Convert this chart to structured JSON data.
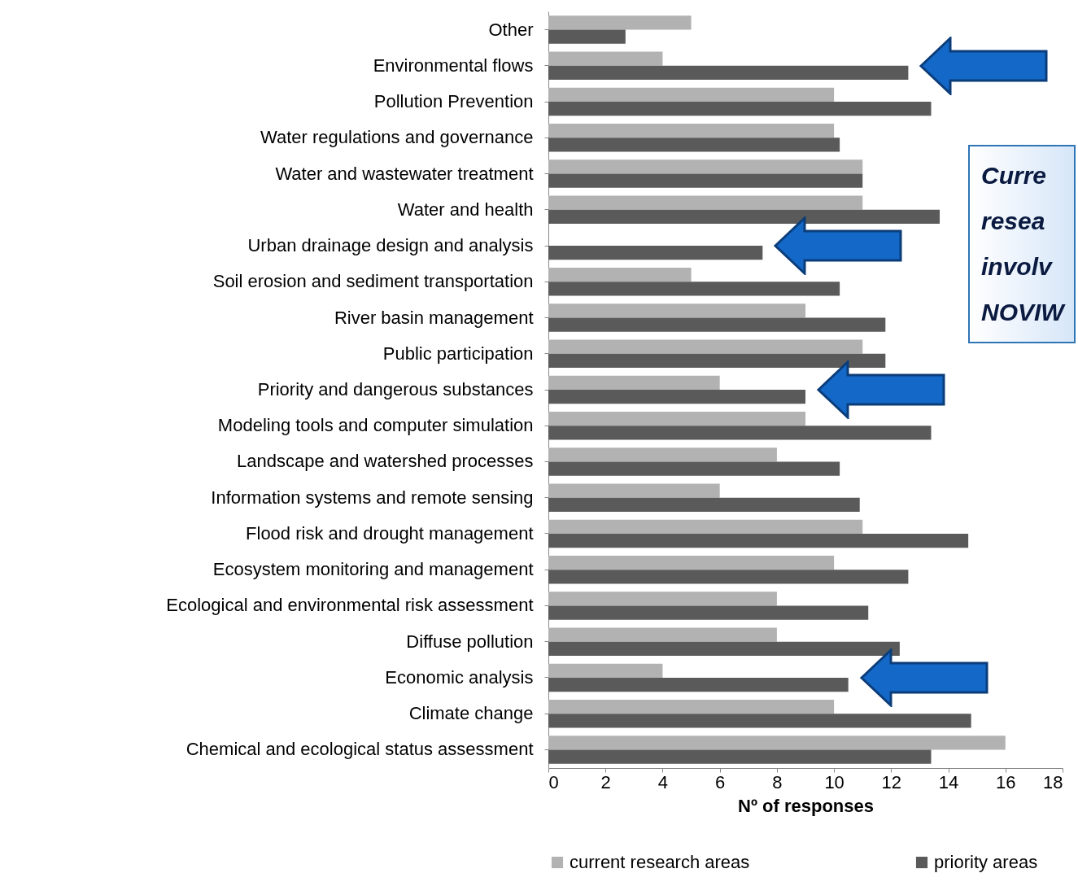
{
  "chart_data": {
    "type": "bar",
    "orientation": "horizontal",
    "xlabel": "Nº of responses",
    "legend": "bottom",
    "categories": [
      "Other",
      "Environmental flows",
      "Pollution Prevention",
      "Water regulations and governance",
      "Water and wastewater treatment",
      "Water and health",
      "Urban drainage design and analysis",
      "Soil erosion and sediment transportation",
      "River basin management",
      "Public participation",
      "Priority and dangerous substances",
      "Modeling tools and computer simulation",
      "Landscape and watershed processes",
      "Information systems and remote sensing",
      "Flood risk and drought management",
      "Ecosystem monitoring and management",
      "Ecological and environmental risk assessment",
      "Diffuse pollution",
      "Economic analysis",
      "Climate change",
      "Chemical and ecological status assessment"
    ],
    "series": [
      {
        "name": "current research areas",
        "color": "#b2b2b2",
        "values": [
          5,
          4,
          10,
          10,
          11,
          11,
          0,
          5,
          9,
          11,
          6,
          9,
          8,
          6,
          11,
          10,
          8,
          8,
          4,
          10,
          16
        ]
      },
      {
        "name": "priority areas",
        "color": "#5a5a5a",
        "values": [
          2.7,
          12.6,
          13.4,
          10.2,
          11,
          13.7,
          7.5,
          10.2,
          11.8,
          11.8,
          9,
          13.4,
          10.2,
          10.9,
          14.7,
          12.6,
          11.2,
          12.3,
          10.5,
          14.8,
          13.4
        ]
      }
    ],
    "xlim": [
      0,
      18
    ],
    "xticks": [
      0,
      2,
      4,
      6,
      8,
      10,
      12,
      14,
      16,
      18
    ],
    "annotations": [
      "Curre resea involv NOVIW"
    ]
  }
}
